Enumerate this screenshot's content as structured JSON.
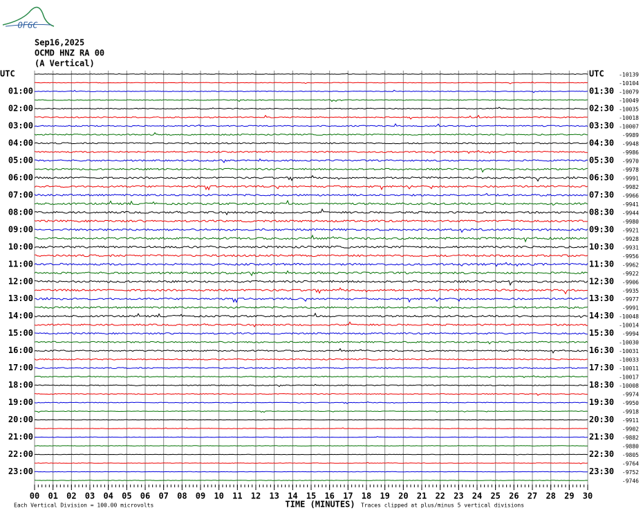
{
  "logo": "OFGC",
  "chart_data": {
    "type": "helicorder",
    "title": "Sep16,2025",
    "subtitle": "OCMD HNZ RA 00",
    "component": "(A Vertical)",
    "x_label": "TIME (MINUTES)",
    "scale_note": "Each Vertical Division =  100.00 microvolts",
    "clip_note": "Traces clipped at plus/minus 5 vertical divisions",
    "colors": [
      "#000000",
      "#ee0000",
      "#0000dd",
      "#007000"
    ],
    "grid": true,
    "xlim": [
      0,
      30
    ],
    "xticks": [
      {
        "value": 0,
        "label": "00"
      },
      {
        "value": 1,
        "label": "01"
      },
      {
        "value": 2,
        "label": "02"
      },
      {
        "value": 3,
        "label": "03"
      },
      {
        "value": 4,
        "label": "04"
      },
      {
        "value": 5,
        "label": "05"
      },
      {
        "value": 6,
        "label": "06"
      },
      {
        "value": 7,
        "label": "07"
      },
      {
        "value": 8,
        "label": "08"
      },
      {
        "value": 9,
        "label": "09"
      },
      10,
      11,
      12,
      13,
      14,
      15,
      16,
      17,
      18,
      19,
      20,
      21,
      22,
      23,
      24,
      25,
      26,
      27,
      28,
      29,
      30
    ],
    "left_labels": [
      "UTC",
      null,
      "01:00",
      null,
      "02:00",
      null,
      "03:00",
      null,
      "04:00",
      null,
      "05:00",
      null,
      "06:00",
      null,
      "07:00",
      null,
      "08:00",
      null,
      "09:00",
      null,
      "10:00",
      null,
      "11:00",
      null,
      "12:00",
      null,
      "13:00",
      null,
      "14:00",
      null,
      "15:00",
      null,
      "16:00",
      null,
      "17:00",
      null,
      "18:00",
      null,
      "19:00",
      null,
      "20:00",
      null,
      "21:00",
      null,
      "22:00",
      null,
      "23:00",
      null
    ],
    "right_labels": [
      "UTC",
      null,
      "01:30",
      null,
      "02:30",
      null,
      "03:30",
      null,
      "04:30",
      null,
      "05:30",
      null,
      "06:30",
      null,
      "07:30",
      null,
      "08:30",
      null,
      "09:30",
      null,
      "10:30",
      null,
      "11:30",
      null,
      "12:30",
      null,
      "13:30",
      null,
      "14:30",
      null,
      "15:30",
      null,
      "16:30",
      null,
      "17:30",
      null,
      "18:30",
      null,
      "19:30",
      null,
      "20:30",
      null,
      "21:30",
      null,
      "22:30",
      null,
      "23:30",
      null
    ],
    "offsets": [
      -10139,
      -10104,
      -10079,
      -10049,
      -10035,
      -10018,
      -10007,
      -9989,
      -9948,
      -9986,
      -9970,
      -9978,
      -9991,
      -9982,
      -9966,
      -9941,
      -9944,
      -9980,
      -9921,
      -9928,
      -9931,
      -9956,
      -9962,
      -9922,
      -9906,
      -9935,
      -9977,
      -9991,
      -10048,
      -10014,
      -9994,
      -10030,
      -10031,
      -10033,
      -10011,
      -10017,
      -10008,
      -9974,
      -9950,
      -9918,
      -9911,
      -9902,
      -9882,
      -9880,
      -9805,
      -9764,
      -9752,
      -9746
    ]
  }
}
